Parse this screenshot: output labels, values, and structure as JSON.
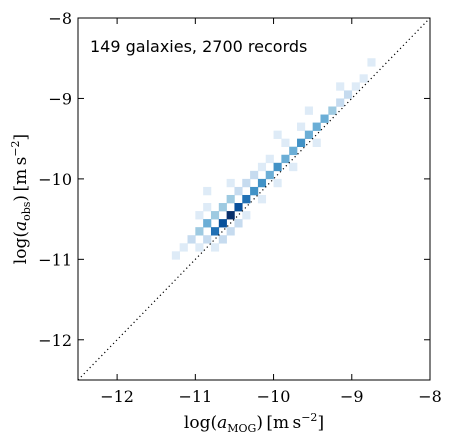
{
  "chart_data": {
    "type": "heatmap",
    "annotation": "149 galaxies, 2700 records",
    "xlabel": {
      "prefix": "log(",
      "var": "a",
      "sub": "MOG",
      "suffix": ") [m s",
      "sup": "−2",
      "close": "]"
    },
    "ylabel": {
      "prefix": "log(",
      "var": "a",
      "sub": "obs",
      "suffix": ") [m s",
      "sup": "−2",
      "close": "]"
    },
    "xlim": [
      -12.5,
      -8
    ],
    "ylim": [
      -12.5,
      -8
    ],
    "xticks": [
      -12,
      -11,
      -10,
      -9,
      -8
    ],
    "yticks": [
      -12,
      -11,
      -10,
      -9,
      -8
    ],
    "xtick_labels": [
      "−12",
      "−11",
      "−10",
      "−9",
      "−8"
    ],
    "ytick_labels": [
      "−12",
      "−11",
      "−10",
      "−9",
      "−8"
    ],
    "reference_line": {
      "style": "dotted",
      "description": "1:1 line",
      "from": [
        -12.5,
        -12.5
      ],
      "to": [
        -8,
        -8
      ]
    },
    "bin_width": 0.1,
    "colormap": [
      "#f7fbff",
      "#deebf7",
      "#c6dbef",
      "#9ecae1",
      "#6baed6",
      "#4292c6",
      "#2171b5",
      "#08519c",
      "#08306b"
    ],
    "cells": [
      [
        -11.2,
        -10.9,
        1
      ],
      [
        -11.1,
        -10.8,
        2
      ],
      [
        -11.0,
        -10.7,
        3
      ],
      [
        -11.0,
        -10.9,
        1
      ],
      [
        -11.0,
        -10.5,
        1
      ],
      [
        -10.9,
        -10.6,
        4
      ],
      [
        -10.9,
        -10.8,
        2
      ],
      [
        -10.9,
        -10.4,
        1
      ],
      [
        -10.8,
        -10.7,
        7
      ],
      [
        -10.8,
        -10.5,
        3
      ],
      [
        -10.8,
        -10.9,
        1
      ],
      [
        -10.7,
        -10.6,
        8
      ],
      [
        -10.7,
        -10.4,
        3
      ],
      [
        -10.7,
        -10.8,
        2
      ],
      [
        -10.6,
        -10.5,
        9
      ],
      [
        -10.6,
        -10.3,
        3
      ],
      [
        -10.6,
        -10.7,
        2
      ],
      [
        -10.5,
        -10.4,
        8
      ],
      [
        -10.5,
        -10.2,
        2
      ],
      [
        -10.5,
        -10.6,
        2
      ],
      [
        -10.4,
        -10.3,
        7
      ],
      [
        -10.4,
        -10.1,
        2
      ],
      [
        -10.4,
        -10.5,
        1
      ],
      [
        -10.3,
        -10.2,
        6
      ],
      [
        -10.3,
        -10.0,
        2
      ],
      [
        -10.2,
        -10.1,
        6
      ],
      [
        -10.2,
        -9.9,
        1
      ],
      [
        -10.2,
        -10.3,
        1
      ],
      [
        -10.1,
        -10.0,
        5
      ],
      [
        -10.1,
        -9.8,
        1
      ],
      [
        -10.0,
        -9.9,
        6
      ],
      [
        -10.0,
        -10.1,
        1
      ],
      [
        -9.9,
        -9.8,
        5
      ],
      [
        -9.9,
        -9.6,
        1
      ],
      [
        -9.8,
        -9.7,
        5
      ],
      [
        -9.8,
        -9.9,
        1
      ],
      [
        -9.7,
        -9.6,
        6
      ],
      [
        -9.7,
        -9.4,
        1
      ],
      [
        -9.6,
        -9.5,
        5
      ],
      [
        -9.5,
        -9.4,
        5
      ],
      [
        -9.5,
        -9.6,
        1
      ],
      [
        -9.4,
        -9.3,
        4
      ],
      [
        -9.3,
        -9.2,
        3
      ],
      [
        -9.2,
        -9.1,
        2
      ],
      [
        -9.1,
        -9.0,
        2
      ],
      [
        -9.0,
        -8.9,
        1
      ],
      [
        -8.9,
        -8.8,
        1
      ],
      [
        -8.8,
        -8.6,
        1
      ],
      [
        -11.3,
        -11.0,
        1
      ],
      [
        -10.6,
        -10.1,
        1
      ],
      [
        -10.0,
        -9.5,
        1
      ],
      [
        -9.6,
        -9.2,
        1
      ],
      [
        -9.2,
        -8.9,
        1
      ],
      [
        -10.9,
        -10.2,
        1
      ]
    ]
  }
}
